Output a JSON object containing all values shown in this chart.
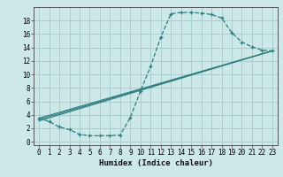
{
  "bg_color": "#cce8e8",
  "grid_color": "#aacccc",
  "line_color": "#2e7d7d",
  "xlabel": "Humidex (Indice chaleur)",
  "xlim": [
    -0.5,
    23.5
  ],
  "ylim": [
    -0.5,
    20.0
  ],
  "xticks": [
    0,
    1,
    2,
    3,
    4,
    5,
    6,
    7,
    8,
    9,
    10,
    11,
    12,
    13,
    14,
    15,
    16,
    17,
    18,
    19,
    20,
    21,
    22,
    23
  ],
  "yticks": [
    0,
    2,
    4,
    6,
    8,
    10,
    12,
    14,
    16,
    18
  ],
  "curve_x": [
    0,
    1,
    2,
    3,
    4,
    5,
    6,
    7,
    8,
    9,
    10,
    11,
    12,
    13,
    14,
    15,
    16,
    17,
    18,
    19,
    20,
    21,
    22,
    23
  ],
  "curve_y": [
    3.5,
    3.0,
    2.2,
    1.8,
    1.1,
    0.9,
    0.9,
    0.9,
    1.0,
    3.6,
    7.5,
    11.2,
    15.5,
    19.0,
    19.2,
    19.2,
    19.1,
    18.9,
    18.4,
    16.2,
    14.8,
    14.1,
    13.6,
    13.5
  ],
  "line1_x": [
    0,
    23
  ],
  "line1_y": [
    3.5,
    13.5
  ],
  "line2_x": [
    0,
    23
  ],
  "line2_y": [
    3.3,
    13.5
  ],
  "line3_x": [
    0,
    23
  ],
  "line3_y": [
    3.1,
    13.5
  ],
  "xlabel_fontsize": 6.5,
  "tick_fontsize": 5.5
}
